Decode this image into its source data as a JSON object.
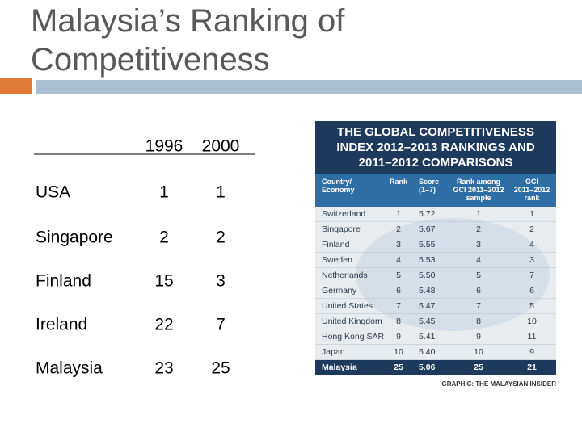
{
  "header": {
    "title": "Malaysia’s Ranking of Competitiveness"
  },
  "table": {
    "columns": [
      "1996",
      "2000"
    ],
    "rows": [
      [
        "USA",
        "1",
        "1"
      ],
      [
        "Singapore",
        "2",
        "2"
      ],
      [
        "Finland",
        "15",
        "3"
      ],
      [
        "Ireland",
        "22",
        "7"
      ],
      [
        "Malaysia",
        "23",
        "25"
      ]
    ]
  },
  "infographic": {
    "title": "THE GLOBAL COMPETITIVENESS INDEX 2012–2013 RANKINGS AND 2011–2012 COMPARISONS",
    "columns": [
      "Country/ Economy",
      "Rank",
      "Score (1–7)",
      "Rank among GCI 2011–2012 sample",
      "GCI 2011–2012 rank"
    ],
    "rows": [
      [
        "Switzerland",
        "1",
        "5.72",
        "1",
        "1"
      ],
      [
        "Singapore",
        "2",
        "5.67",
        "2",
        "2"
      ],
      [
        "Finland",
        "3",
        "5.55",
        "3",
        "4"
      ],
      [
        "Sweden",
        "4",
        "5.53",
        "4",
        "3"
      ],
      [
        "Netherlands",
        "5",
        "5.50",
        "5",
        "7"
      ],
      [
        "Germany",
        "6",
        "5.48",
        "6",
        "6"
      ],
      [
        "United States",
        "7",
        "5.47",
        "7",
        "5"
      ],
      [
        "United Kingdom",
        "8",
        "5.45",
        "8",
        "10"
      ],
      [
        "Hong Kong SAR",
        "9",
        "5.41",
        "9",
        "11"
      ],
      [
        "Japan",
        "10",
        "5.40",
        "10",
        "9"
      ],
      [
        "Malaysia",
        "25",
        "5.06",
        "25",
        "21"
      ]
    ],
    "credit": "GRAPHIC: THE MALAYSIAN INSIDER"
  }
}
